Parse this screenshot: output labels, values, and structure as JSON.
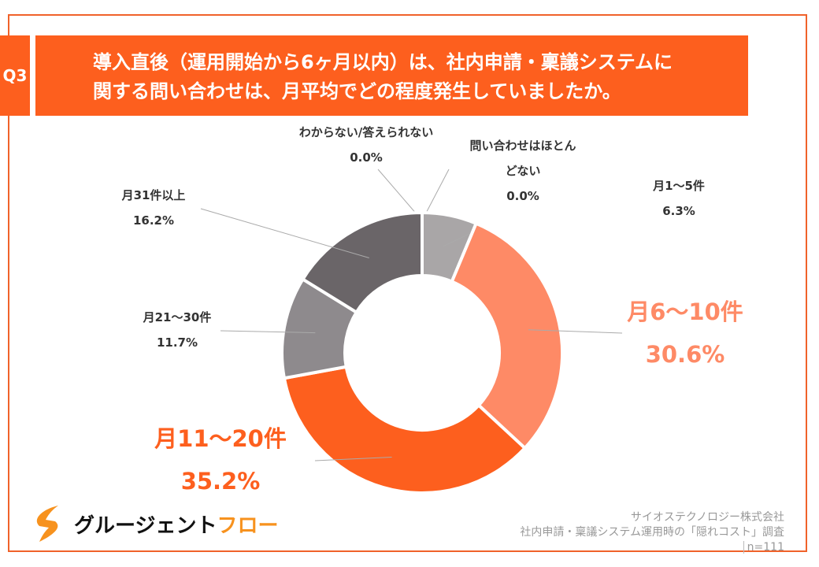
{
  "header": {
    "question_no": "Q3",
    "title_line1": "導入直後（運用開始から6ヶ月以内）は、社内申請・稟議システムに",
    "title_line2": "関する問い合わせは、月平均でどの程度発生していましたか。"
  },
  "chart_data": {
    "type": "pie",
    "donut": true,
    "start": "top",
    "direction": "clockwise",
    "categories": [
      "わからない/答えられない",
      "問い合わせはほとんどない",
      "月1〜5件",
      "月6〜10件",
      "月11〜20件",
      "月21〜30件",
      "月31件以上"
    ],
    "values": [
      0.0,
      0.0,
      6.3,
      30.6,
      35.2,
      11.7,
      16.2
    ],
    "labels": [
      "0.0%",
      "0.0%",
      "6.3%",
      "30.6%",
      "35.2%",
      "11.7%",
      "16.2%"
    ],
    "colors": [
      "#a9a6a7",
      "#a9a6a7",
      "#a9a6a7",
      "#fe8a66",
      "#fd5f1e",
      "#8e8a8d",
      "#6a6568"
    ],
    "label_colors": [
      "#333333",
      "#333333",
      "#333333",
      "#fe8a66",
      "#fd5f1e",
      "#333333",
      "#333333"
    ]
  },
  "label_lines": {
    "cat1_a": "問い合わせはほとん",
    "cat1_b": "どない"
  },
  "footer": {
    "logo_text_black": "グルージェント",
    "logo_text_orange": "フロー",
    "company": "サイオステクノロジー株式会社",
    "survey": "社内申請・稟議システム運用時の「隠れコスト」調査",
    "sample": "n=111"
  },
  "colors": {
    "accent": "#fd5f1e",
    "frame": "#f0622a"
  }
}
